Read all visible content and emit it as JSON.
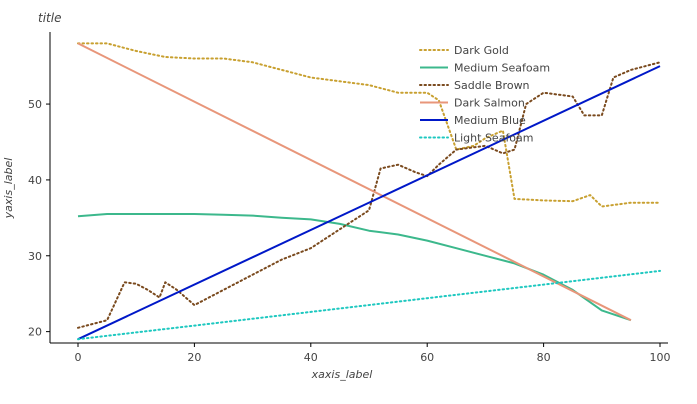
{
  "chart_data": {
    "type": "line",
    "title": "title",
    "xlabel": "xaxis_label",
    "ylabel": "yaxis_label",
    "xlim": [
      0,
      100
    ],
    "ylim": [
      18.5,
      59.5
    ],
    "x_ticks": [
      0,
      20,
      40,
      60,
      80,
      100
    ],
    "y_ticks": [
      20,
      30,
      40,
      50
    ],
    "grid": false,
    "legend_position": "top-right",
    "series": [
      {
        "name": "Dark Gold",
        "color": "#c8a030",
        "dash": "dotted",
        "points": [
          [
            0,
            58
          ],
          [
            5,
            58
          ],
          [
            10,
            57
          ],
          [
            15,
            56.2
          ],
          [
            20,
            56
          ],
          [
            25,
            56
          ],
          [
            30,
            55.5
          ],
          [
            35,
            54.5
          ],
          [
            40,
            53.5
          ],
          [
            45,
            53
          ],
          [
            50,
            52.5
          ],
          [
            55,
            51.5
          ],
          [
            60,
            51.5
          ],
          [
            62,
            50.5
          ],
          [
            65,
            44
          ],
          [
            68,
            44.5
          ],
          [
            70,
            45.5
          ],
          [
            73,
            46.5
          ],
          [
            75,
            37.5
          ],
          [
            80,
            37.3
          ],
          [
            85,
            37.2
          ],
          [
            88,
            38
          ],
          [
            90,
            36.5
          ],
          [
            95,
            37
          ],
          [
            100,
            37
          ]
        ]
      },
      {
        "name": "Medium Seafoam",
        "color": "#3cb88c",
        "dash": "solid",
        "points": [
          [
            0,
            35.2
          ],
          [
            5,
            35.5
          ],
          [
            10,
            35.5
          ],
          [
            15,
            35.5
          ],
          [
            20,
            35.5
          ],
          [
            25,
            35.4
          ],
          [
            30,
            35.3
          ],
          [
            35,
            35
          ],
          [
            40,
            34.8
          ],
          [
            45,
            34.2
          ],
          [
            50,
            33.3
          ],
          [
            55,
            32.8
          ],
          [
            60,
            32
          ],
          [
            65,
            31
          ],
          [
            70,
            30
          ],
          [
            75,
            29
          ],
          [
            80,
            27.5
          ],
          [
            85,
            25.5
          ],
          [
            90,
            22.8
          ],
          [
            95,
            21.5
          ]
        ]
      },
      {
        "name": "Saddle Brown",
        "color": "#7a4a1e",
        "dash": "dotted",
        "points": [
          [
            0,
            20.5
          ],
          [
            5,
            21.5
          ],
          [
            8,
            26.5
          ],
          [
            10,
            26.3
          ],
          [
            12,
            25.5
          ],
          [
            14,
            24.5
          ],
          [
            15,
            26.5
          ],
          [
            17,
            25.5
          ],
          [
            20,
            23.5
          ],
          [
            25,
            25.5
          ],
          [
            30,
            27.5
          ],
          [
            35,
            29.5
          ],
          [
            40,
            31
          ],
          [
            45,
            33.5
          ],
          [
            50,
            36
          ],
          [
            52,
            41.5
          ],
          [
            55,
            42
          ],
          [
            58,
            41
          ],
          [
            60,
            40.5
          ],
          [
            62,
            42
          ],
          [
            65,
            44
          ],
          [
            70,
            44.5
          ],
          [
            73,
            43.5
          ],
          [
            75,
            44
          ],
          [
            77,
            50
          ],
          [
            80,
            51.5
          ],
          [
            85,
            51
          ],
          [
            87,
            48.5
          ],
          [
            90,
            48.5
          ],
          [
            92,
            53.5
          ],
          [
            95,
            54.5
          ],
          [
            100,
            55.5
          ]
        ]
      },
      {
        "name": "Dark Salmon",
        "color": "#e8967a",
        "dash": "solid",
        "points": [
          [
            0,
            58
          ],
          [
            95,
            21.5
          ]
        ]
      },
      {
        "name": "Medium Blue",
        "color": "#0018c8",
        "dash": "solid",
        "points": [
          [
            0,
            19
          ],
          [
            100,
            55
          ]
        ]
      },
      {
        "name": "Light Seafoam",
        "color": "#1ec8c0",
        "dash": "dotted",
        "points": [
          [
            0,
            19
          ],
          [
            20,
            20.8
          ],
          [
            40,
            22.6
          ],
          [
            60,
            24.4
          ],
          [
            80,
            26.2
          ],
          [
            100,
            28
          ]
        ]
      }
    ]
  }
}
